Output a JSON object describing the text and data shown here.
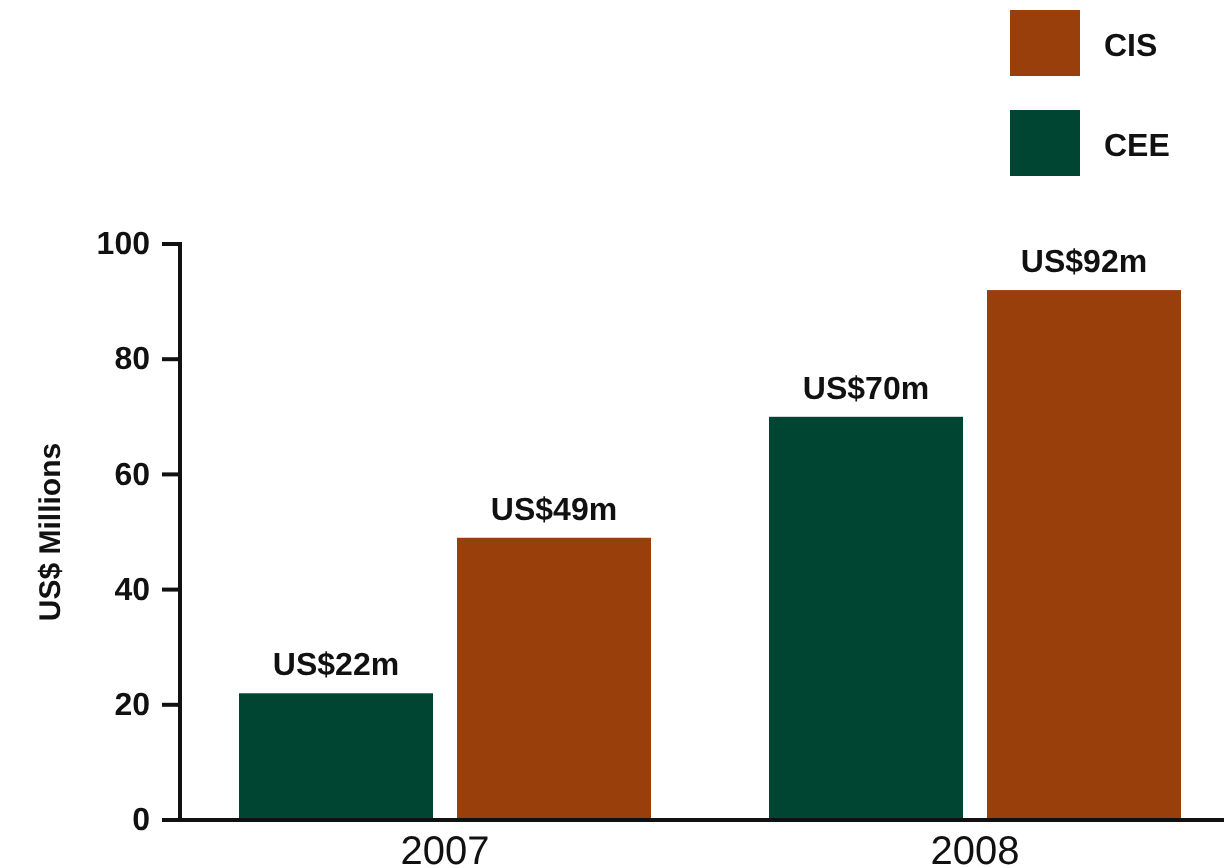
{
  "chart_data": {
    "type": "bar",
    "categories": [
      "2007",
      "2008"
    ],
    "ylabel": "US$ Millions",
    "ylim": [
      0,
      100
    ],
    "yticks": [
      0,
      20,
      40,
      60,
      80,
      100
    ],
    "legend": "top right",
    "grid": false,
    "series": [
      {
        "name": "CEE",
        "color": "#004532",
        "values": [
          22,
          70
        ],
        "value_labels": [
          "US$22m",
          "US$70m"
        ]
      },
      {
        "name": "CIS",
        "color": "#983f0c",
        "values": [
          49,
          92
        ],
        "value_labels": [
          "US$49m",
          "US$92m"
        ]
      }
    ]
  }
}
